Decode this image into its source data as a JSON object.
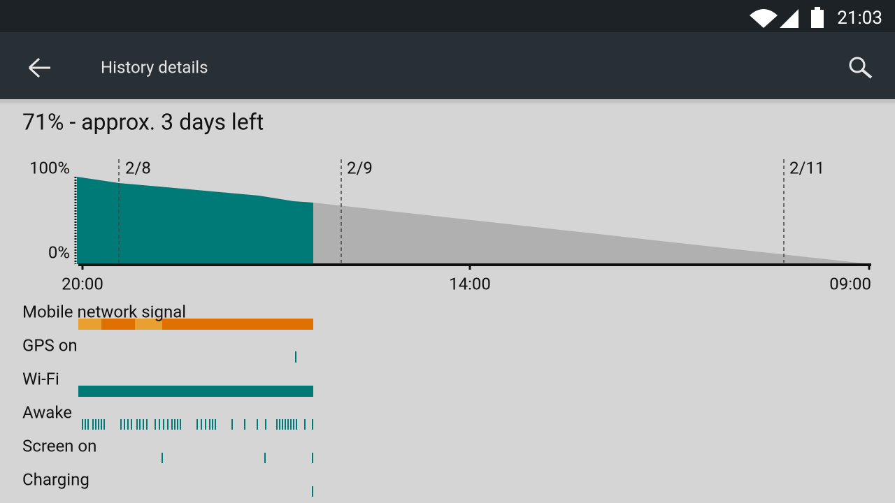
{
  "status_bar": {
    "time": "21:03"
  },
  "app_bar": {
    "title": "History details"
  },
  "summary": "71% - approx. 3 days left",
  "chart": {
    "y_labels": [
      "100%",
      "0%"
    ],
    "date_labels": [
      "2/8",
      "2/9",
      "2/11"
    ],
    "time_labels": [
      "20:00",
      "14:00",
      "09:00"
    ]
  },
  "rows": [
    "Mobile network signal",
    "GPS on",
    "Wi-Fi",
    "Awake",
    "Screen on",
    "Charging"
  ]
}
